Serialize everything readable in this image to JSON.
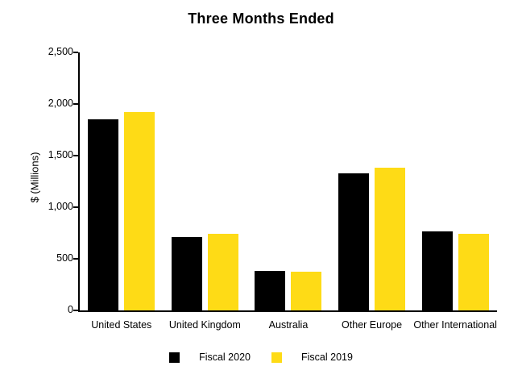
{
  "chart": {
    "title": "Three Months Ended",
    "y_axis_title": "$ (Millions)"
  },
  "colors": {
    "bar_fiscal_2020": "#000000",
    "bar_fiscal_2019": "#FEDB16",
    "axis": "#000000",
    "background": "#FFFFFF"
  },
  "chart_data": {
    "type": "bar",
    "title": "Three Months Ended",
    "xlabel": "",
    "ylabel": "$ (Millions)",
    "categories": [
      "United States",
      "United Kingdom",
      "Australia",
      "Other Europe",
      "Other International"
    ],
    "series": [
      {
        "name": "Fiscal 2020",
        "color": "#000000",
        "values": [
          1850,
          710,
          385,
          1330,
          765
        ]
      },
      {
        "name": "Fiscal 2019",
        "color": "#FEDB16",
        "values": [
          1920,
          745,
          375,
          1385,
          745
        ]
      }
    ],
    "ylim": [
      0,
      2500
    ],
    "y_ticks": [
      0,
      500,
      1000,
      1500,
      2000,
      2500
    ],
    "y_tick_labels": [
      "0",
      "500",
      "1,000",
      "1,500",
      "2,000",
      "2,500"
    ],
    "grid": false,
    "legend_position": "bottom"
  }
}
